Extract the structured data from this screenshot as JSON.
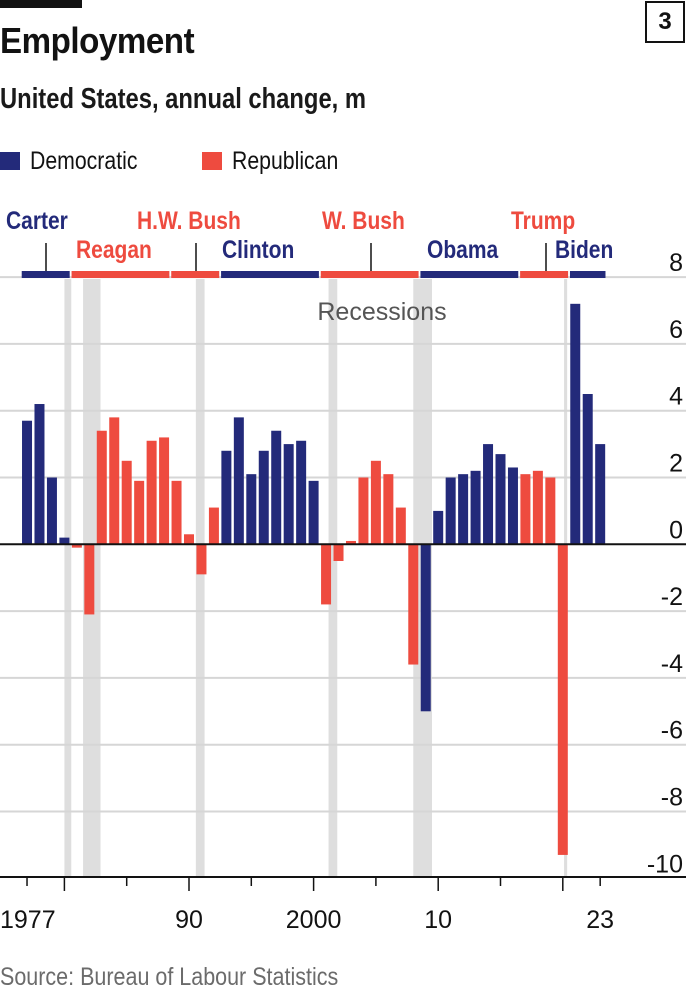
{
  "header": {
    "title": "Employment",
    "subtitle": "United States, annual change, m",
    "chart_number": "3"
  },
  "legend": [
    {
      "label": "Democratic",
      "color": "#232a7a"
    },
    {
      "label": "Republican",
      "color": "#ee4b3f"
    }
  ],
  "colors": {
    "democratic": "#232a7a",
    "republican": "#ee4b3f",
    "recession": "#dedede",
    "grid": "#d6d6d6"
  },
  "source": "Source: Bureau of Labour Statistics",
  "chart_data": {
    "type": "bar",
    "title": "Employment",
    "subtitle": "United States, annual change, m",
    "xlabel": "",
    "ylabel": "annual change, m",
    "ylim": [
      -10,
      8
    ],
    "yticks": [
      8,
      6,
      4,
      2,
      0,
      -2,
      -4,
      -6,
      -8,
      -10
    ],
    "xticks_labeled": [
      {
        "year": 1977,
        "label": "1977"
      },
      {
        "year": 1990,
        "label": "90"
      },
      {
        "year": 2000,
        "label": "2000"
      },
      {
        "year": 2010,
        "label": "10"
      },
      {
        "year": 2023,
        "label": "23"
      }
    ],
    "xticks_major": [
      1980,
      1990,
      2000,
      2010,
      2020
    ],
    "xticks_minor": [
      1977,
      1985,
      1995,
      2005,
      2015,
      2023
    ],
    "grid": true,
    "legend_position": "top-left",
    "recession_label": "Recessions",
    "years": [
      1977,
      1978,
      1979,
      1980,
      1981,
      1982,
      1983,
      1984,
      1985,
      1986,
      1987,
      1988,
      1989,
      1990,
      1991,
      1992,
      1993,
      1994,
      1995,
      1996,
      1997,
      1998,
      1999,
      2000,
      2001,
      2002,
      2003,
      2004,
      2005,
      2006,
      2007,
      2008,
      2009,
      2010,
      2011,
      2012,
      2013,
      2014,
      2015,
      2016,
      2017,
      2018,
      2019,
      2020,
      2021,
      2022,
      2023
    ],
    "values": [
      3.7,
      4.2,
      2.0,
      0.2,
      -0.1,
      -2.1,
      3.4,
      3.8,
      2.5,
      1.9,
      3.1,
      3.2,
      1.9,
      0.3,
      -0.9,
      1.1,
      2.8,
      3.8,
      2.1,
      2.8,
      3.4,
      3.0,
      3.1,
      1.9,
      -1.8,
      -0.5,
      0.1,
      2.0,
      2.5,
      2.1,
      1.1,
      -3.6,
      -5.0,
      1.0,
      2.0,
      2.1,
      2.2,
      3.0,
      2.7,
      2.3,
      2.1,
      2.2,
      2.0,
      -9.3,
      7.2,
      4.5,
      3.0
    ],
    "party": [
      "D",
      "D",
      "D",
      "D",
      "R",
      "R",
      "R",
      "R",
      "R",
      "R",
      "R",
      "R",
      "R",
      "R",
      "R",
      "R",
      "D",
      "D",
      "D",
      "D",
      "D",
      "D",
      "D",
      "D",
      "R",
      "R",
      "R",
      "R",
      "R",
      "R",
      "R",
      "R",
      "D",
      "D",
      "D",
      "D",
      "D",
      "D",
      "D",
      "D",
      "R",
      "R",
      "R",
      "R",
      "D",
      "D",
      "D"
    ],
    "presidents": [
      {
        "name": "Carter",
        "party": "D",
        "start": 1977,
        "end": 1980,
        "row": 1
      },
      {
        "name": "Reagan",
        "party": "R",
        "start": 1981,
        "end": 1988,
        "row": 2
      },
      {
        "name": "H.W. Bush",
        "party": "R",
        "start": 1989,
        "end": 1992,
        "row": 1
      },
      {
        "name": "Clinton",
        "party": "D",
        "start": 1993,
        "end": 2000,
        "row": 2
      },
      {
        "name": "W. Bush",
        "party": "R",
        "start": 2001,
        "end": 2008,
        "row": 1
      },
      {
        "name": "Obama",
        "party": "D",
        "start": 2009,
        "end": 2016,
        "row": 2
      },
      {
        "name": "Trump",
        "party": "R",
        "start": 2017,
        "end": 2020,
        "row": 1
      },
      {
        "name": "Biden",
        "party": "D",
        "start": 2021,
        "end": 2023,
        "row": 2
      }
    ],
    "recessions": [
      {
        "start": 1980.0,
        "end": 1980.55
      },
      {
        "start": 1981.5,
        "end": 1982.9
      },
      {
        "start": 1990.55,
        "end": 1991.25
      },
      {
        "start": 2001.2,
        "end": 2001.9
      },
      {
        "start": 2008.0,
        "end": 2009.5
      },
      {
        "start": 2020.1,
        "end": 2020.35
      }
    ]
  }
}
